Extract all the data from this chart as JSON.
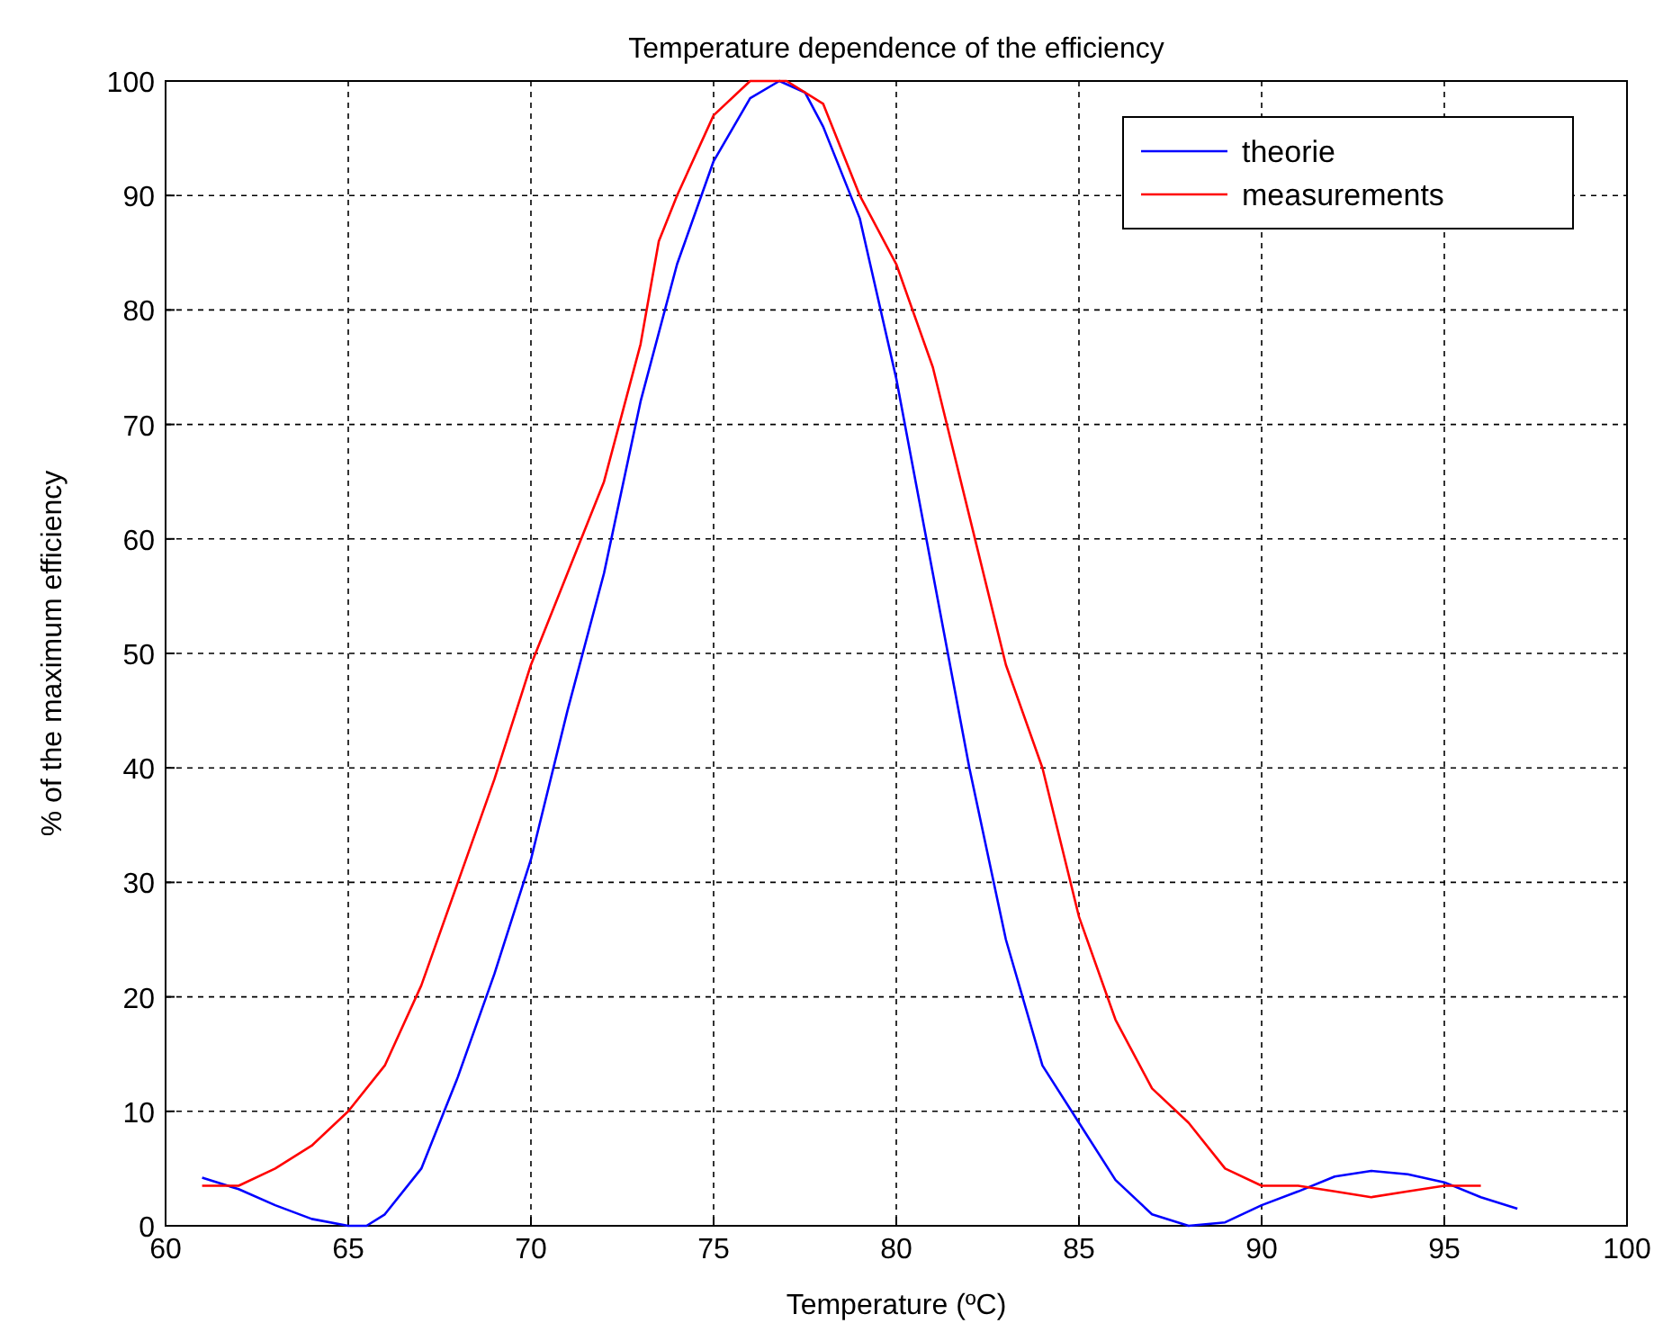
{
  "chart_data": {
    "type": "line",
    "title": "Temperature dependence of the efficiency",
    "xlabel": "Temperature (ºC)",
    "ylabel": "% of the maximum efficiency",
    "xlim": [
      60,
      100
    ],
    "xticks": [
      60,
      65,
      70,
      75,
      80,
      85,
      90,
      95,
      100
    ],
    "ylim": [
      0,
      100
    ],
    "yticks": [
      0,
      10,
      20,
      30,
      40,
      50,
      60,
      70,
      80,
      90,
      100
    ],
    "grid": true,
    "legend": "top right",
    "marker": "none",
    "line_style": "solid",
    "series": [
      {
        "name": "theorie",
        "color": "#0000ff",
        "x": [
          61,
          62,
          63,
          64,
          65,
          65.5,
          66,
          67,
          68,
          69,
          70,
          71,
          72,
          73,
          74,
          75,
          76,
          76.8,
          77.5,
          78,
          79,
          80,
          81,
          82,
          83,
          84,
          85,
          86,
          87,
          88,
          89,
          90,
          91,
          92,
          93,
          94,
          95,
          96,
          97
        ],
        "values": [
          4.2,
          3.2,
          1.8,
          0.6,
          0,
          0,
          1,
          5,
          13,
          22,
          32,
          45,
          57,
          72,
          84,
          93,
          98.5,
          100,
          99,
          96,
          88,
          74,
          57,
          40,
          25,
          14,
          9,
          4,
          1,
          0,
          0.3,
          1.8,
          3,
          4.3,
          4.8,
          4.5,
          3.8,
          2.5,
          1.5
        ]
      },
      {
        "name": "measurements",
        "color": "#ff0000",
        "x": [
          61,
          62,
          63,
          64,
          65,
          66,
          67,
          68,
          69,
          70,
          71,
          72,
          73,
          73.5,
          74,
          75,
          76,
          77,
          78,
          79,
          80,
          81,
          82,
          83,
          84,
          85,
          86,
          87,
          88,
          89,
          90,
          91,
          92,
          93,
          94,
          95,
          96
        ],
        "values": [
          3.5,
          3.5,
          5,
          7,
          10,
          14,
          21,
          30,
          39,
          49,
          57,
          65,
          77,
          86,
          90,
          97,
          100,
          100,
          98,
          90,
          84,
          75,
          62,
          49,
          40,
          27,
          18,
          12,
          9,
          5,
          3.5,
          3.5,
          3,
          2.5,
          3,
          3.5,
          3.5
        ]
      }
    ]
  }
}
